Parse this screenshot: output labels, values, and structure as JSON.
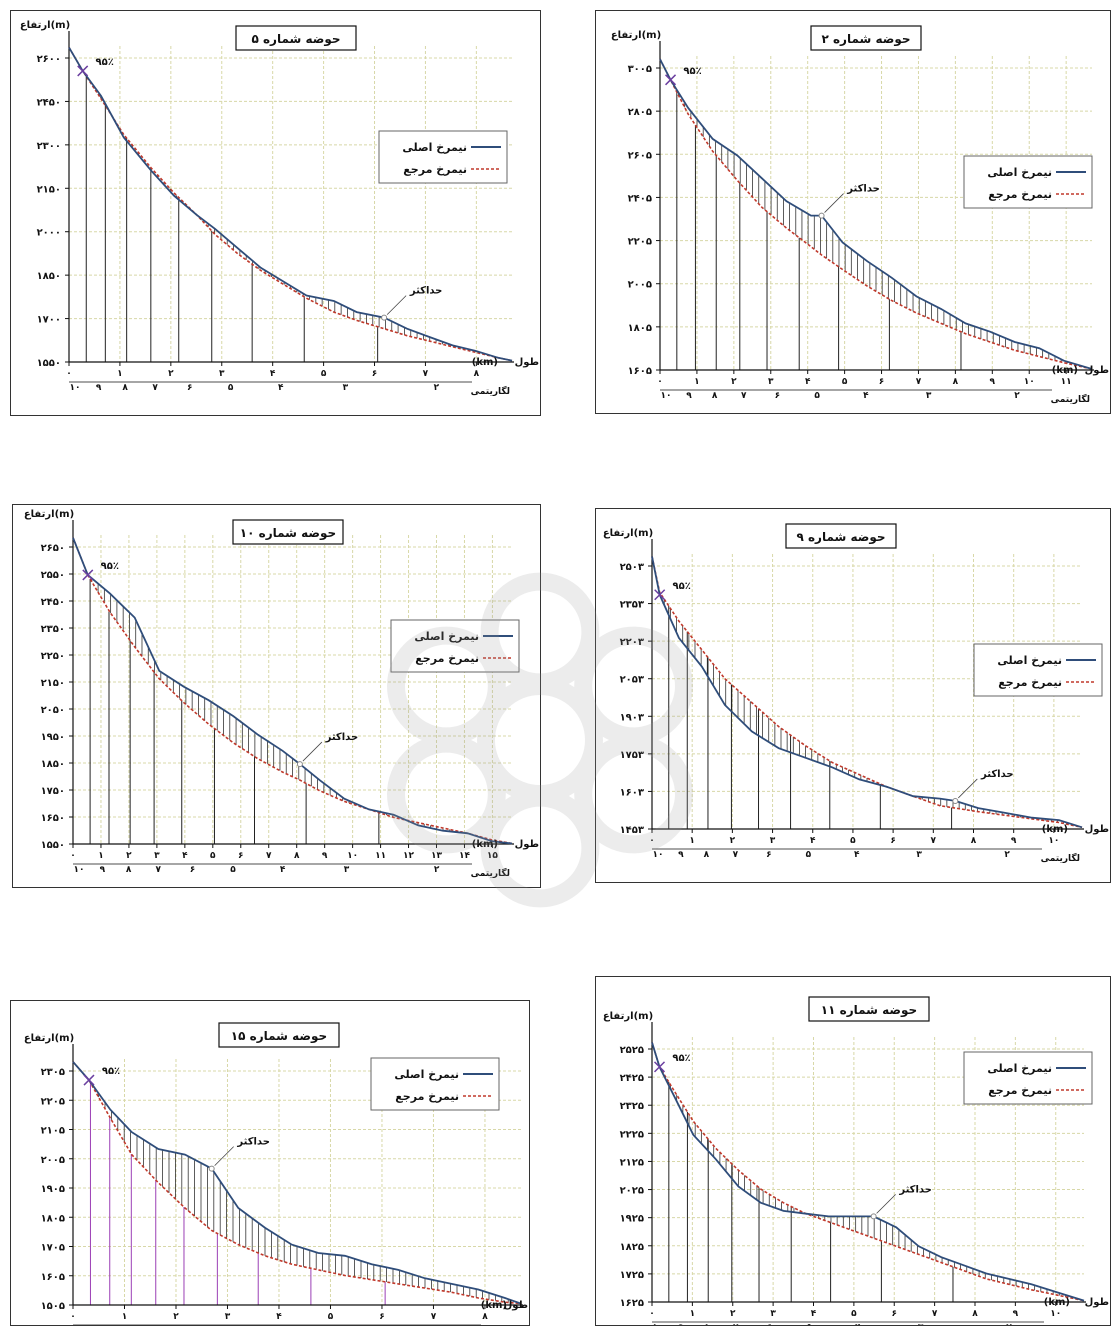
{
  "labels": {
    "y_axis": "ارتفاع(m)",
    "x_axis": "طول",
    "x_unit": "(km)",
    "log_label": "لگاریتمی",
    "legend_main": "نیمرخ اصلی",
    "legend_ref": "نیمرخ مرجع",
    "max_label": "حداکثر",
    "pct_label": "۹۵٪"
  },
  "colors": {
    "main": "#2f4d7a",
    "ref": "#c0392b",
    "grid": "#d8d8a8",
    "hatch": "#222222",
    "hatch_purple": "#9b3fb5"
  },
  "chart_data": [
    {
      "type": "line",
      "title": "حوضه شماره ۵",
      "yticks": [
        "۲۶۰۰",
        "۲۴۵۰",
        "۲۳۰۰",
        "۲۱۵۰",
        "۲۰۰۰",
        "۱۸۵۰",
        "۱۷۰۰",
        "۱۵۵۰"
      ],
      "ylim": [
        1550,
        2690
      ],
      "xlim": [
        0,
        9.7
      ],
      "xticks": [
        "۰",
        "۱",
        "۲",
        "۳",
        "۴",
        "۵",
        "۶",
        "۷",
        "۸"
      ],
      "logticks": [
        "۱۰",
        "۹",
        "۸",
        "۷",
        "۶",
        "۵",
        "۴",
        "۳",
        "۲"
      ],
      "max_x": 6.9,
      "series": [
        {
          "x": [
            0,
            0.3,
            0.7,
            1.2,
            1.8,
            2.3,
            2.8,
            3.2,
            3.7,
            4.2,
            4.7,
            5.2,
            5.8,
            6.3,
            6.9,
            7.4,
            7.9,
            8.4,
            8.9,
            9.4,
            9.7
          ],
          "y": [
            2685,
            2600,
            2510,
            2360,
            2240,
            2150,
            2080,
            2030,
            1960,
            1890,
            1840,
            1790,
            1770,
            1730,
            1710,
            1670,
            1640,
            1610,
            1590,
            1565,
            1555
          ]
        },
        {
          "x": [
            0,
            0.3,
            0.7,
            1.2,
            1.8,
            2.3,
            2.8,
            3.2,
            3.7,
            4.2,
            4.7,
            5.2,
            5.8,
            6.3,
            6.9,
            7.4,
            7.9,
            8.4,
            8.9,
            9.4,
            9.7
          ],
          "y": [
            2685,
            2600,
            2500,
            2370,
            2250,
            2160,
            2080,
            2010,
            1940,
            1880,
            1830,
            1780,
            1730,
            1700,
            1670,
            1645,
            1625,
            1605,
            1585,
            1565,
            1555
          ]
        }
      ],
      "legend": "top-right"
    },
    {
      "type": "line",
      "title": "حوضه شماره ۲",
      "yticks": [
        "۳۰۰۵",
        "۲۸۰۵",
        "۲۶۰۵",
        "۲۴۰۵",
        "۲۲۰۵",
        "۲۰۰۵",
        "۱۸۰۵",
        "۱۶۰۵"
      ],
      "ylim": [
        1605,
        3120
      ],
      "xlim": [
        0,
        12.3
      ],
      "xticks": [
        "۰",
        "۱",
        "۲",
        "۳",
        "۴",
        "۵",
        "۶",
        "۷",
        "۸",
        "۹",
        "۱۰",
        "۱۱"
      ],
      "logticks": [
        "۱۰",
        "۹",
        "۸",
        "۷",
        "۶",
        "۵",
        "۴",
        "۳",
        "۲"
      ],
      "max_x": 4.6,
      "series": [
        {
          "x": [
            0,
            0.3,
            0.8,
            1.5,
            2.2,
            2.9,
            3.6,
            4.3,
            4.6,
            5.2,
            5.9,
            6.6,
            7.3,
            8.0,
            8.7,
            9.4,
            10.1,
            10.8,
            11.5,
            12.3
          ],
          "y": [
            3105,
            3005,
            2870,
            2720,
            2640,
            2530,
            2420,
            2350,
            2350,
            2220,
            2130,
            2050,
            1960,
            1900,
            1830,
            1790,
            1740,
            1710,
            1650,
            1610
          ]
        },
        {
          "x": [
            0,
            0.3,
            0.8,
            1.5,
            2.2,
            2.9,
            3.6,
            4.3,
            4.6,
            5.2,
            5.9,
            6.6,
            7.3,
            8.0,
            8.7,
            9.4,
            10.1,
            10.8,
            11.5,
            12.3
          ],
          "y": [
            3105,
            3005,
            2840,
            2660,
            2520,
            2390,
            2290,
            2200,
            2160,
            2090,
            2010,
            1940,
            1880,
            1830,
            1780,
            1740,
            1700,
            1670,
            1640,
            1610
          ]
        }
      ],
      "legend": "middle-right"
    },
    {
      "type": "line",
      "title": "حوضه شماره ۱۰",
      "yticks": [
        "۲۶۵۰",
        "۲۵۵۰",
        "۲۴۵۰",
        "۲۳۵۰",
        "۲۲۵۰",
        "۲۱۵۰",
        "۲۰۵۰",
        "۱۹۵۰",
        "۱۸۵۰",
        "۱۷۵۰",
        "۱۶۵۰",
        "۱۵۵۰"
      ],
      "ylim": [
        1550,
        2710
      ],
      "xlim": [
        0,
        17.8
      ],
      "xticks": [
        "۰",
        "۱",
        "۲",
        "۳",
        "۴",
        "۵",
        "۶",
        "۷",
        "۸",
        "۹",
        "۱۰",
        "۱۱",
        "۱۲",
        "۱۳",
        "۱۴",
        "۱۵"
      ],
      "logticks": [
        "۱۰",
        "۹",
        "۸",
        "۷",
        "۶",
        "۵",
        "۴",
        "۳",
        "۲"
      ],
      "max_x": 9.2,
      "series": [
        {
          "x": [
            0,
            0.6,
            1.5,
            2.5,
            3.5,
            4.5,
            5.5,
            6.5,
            7.5,
            8.5,
            9.2,
            10.0,
            11.0,
            12.0,
            13.0,
            14.0,
            15.0,
            16.0,
            17.0,
            17.8
          ],
          "y": [
            2700,
            2560,
            2490,
            2400,
            2200,
            2140,
            2090,
            2030,
            1960,
            1900,
            1850,
            1790,
            1720,
            1680,
            1660,
            1620,
            1600,
            1590,
            1560,
            1552
          ]
        },
        {
          "x": [
            0,
            0.6,
            1.5,
            2.5,
            3.5,
            4.5,
            5.5,
            6.5,
            7.5,
            8.5,
            9.2,
            10.0,
            11.0,
            12.0,
            13.0,
            14.0,
            15.0,
            16.0,
            17.0,
            17.8
          ],
          "y": [
            2700,
            2560,
            2420,
            2290,
            2170,
            2080,
            2000,
            1930,
            1870,
            1820,
            1790,
            1750,
            1710,
            1680,
            1650,
            1630,
            1610,
            1590,
            1565,
            1552
          ]
        }
      ],
      "legend": "top-right"
    },
    {
      "type": "line",
      "title": "حوضه شماره ۹",
      "yticks": [
        "۲۵۰۳",
        "۲۳۵۳",
        "۲۲۰۳",
        "۲۰۵۳",
        "۱۹۰۳",
        "۱۷۵۳",
        "۱۶۰۳",
        "۱۴۵۳"
      ],
      "ylim": [
        1453,
        2600
      ],
      "xlim": [
        0,
        11.2
      ],
      "xticks": [
        "۰",
        "۱",
        "۲",
        "۳",
        "۴",
        "۵",
        "۶",
        "۷",
        "۸",
        "۹",
        "۱۰"
      ],
      "logticks": [
        "۱۰",
        "۹",
        "۸",
        "۷",
        "۶",
        "۵",
        "۴",
        "۳",
        "۲"
      ],
      "max_x": 7.9,
      "series": [
        {
          "x": [
            0,
            0.2,
            0.7,
            1.3,
            1.9,
            2.6,
            3.3,
            4.0,
            4.7,
            5.4,
            6.1,
            6.8,
            7.5,
            7.9,
            8.5,
            9.2,
            9.9,
            10.6,
            11.2
          ],
          "y": [
            2590,
            2430,
            2250,
            2130,
            1970,
            1860,
            1790,
            1750,
            1710,
            1660,
            1630,
            1590,
            1580,
            1570,
            1540,
            1520,
            1500,
            1490,
            1460
          ]
        },
        {
          "x": [
            0,
            0.2,
            0.7,
            1.3,
            1.9,
            2.6,
            3.3,
            4.0,
            4.7,
            5.4,
            6.1,
            6.8,
            7.5,
            7.9,
            8.5,
            9.2,
            9.9,
            10.6,
            11.2
          ],
          "y": [
            2590,
            2440,
            2320,
            2200,
            2080,
            1980,
            1880,
            1800,
            1730,
            1680,
            1630,
            1590,
            1550,
            1540,
            1525,
            1510,
            1495,
            1480,
            1460
          ]
        }
      ],
      "legend": "middle-right"
    },
    {
      "type": "line",
      "title": "حوضه شماره ۱۵",
      "yticks": [
        "۲۳۰۵",
        "۲۲۰۵",
        "۲۱۰۵",
        "۲۰۰۵",
        "۱۹۰۵",
        "۱۸۰۵",
        "۱۷۰۵",
        "۱۶۰۵",
        "۱۵۰۵"
      ],
      "ylim": [
        1505,
        2380
      ],
      "xlim": [
        0,
        8.4
      ],
      "xticks": [
        "۰",
        "۱",
        "۲",
        "۳",
        "۴",
        "۵",
        "۶",
        "۷",
        "۸"
      ],
      "logticks": [
        "۱۰",
        "۹",
        "۸",
        "۷",
        "۶",
        "۵",
        "۴",
        "۳",
        "۲"
      ],
      "max_x": 2.6,
      "series": [
        {
          "x": [
            0,
            0.3,
            0.7,
            1.1,
            1.6,
            2.1,
            2.6,
            3.1,
            3.6,
            4.1,
            4.6,
            5.1,
            5.6,
            6.1,
            6.6,
            7.1,
            7.6,
            8.1,
            8.4
          ],
          "y": [
            2370,
            2305,
            2200,
            2120,
            2060,
            2040,
            1990,
            1850,
            1780,
            1720,
            1690,
            1680,
            1650,
            1630,
            1600,
            1580,
            1560,
            1530,
            1510
          ]
        },
        {
          "x": [
            0,
            0.3,
            0.7,
            1.1,
            1.6,
            2.1,
            2.6,
            3.1,
            3.6,
            4.1,
            4.6,
            5.1,
            5.6,
            6.1,
            6.6,
            7.1,
            7.6,
            8.1,
            8.4
          ],
          "y": [
            2370,
            2305,
            2170,
            2040,
            1940,
            1850,
            1770,
            1720,
            1680,
            1650,
            1630,
            1610,
            1595,
            1580,
            1565,
            1550,
            1530,
            1515,
            1510
          ]
        }
      ],
      "legend": "top-right"
    },
    {
      "type": "line",
      "title": "حوضه شماره ۱۱",
      "yticks": [
        "۲۵۲۵",
        "۲۴۲۵",
        "۲۳۲۵",
        "۲۲۲۵",
        "۲۱۲۵",
        "۲۰۲۵",
        "۱۹۲۵",
        "۱۸۲۵",
        "۱۷۲۵",
        "۱۶۲۵"
      ],
      "ylim": [
        1625,
        2600
      ],
      "xlim": [
        0,
        11.5
      ],
      "xticks": [
        "۰",
        "۱",
        "۲",
        "۳",
        "۴",
        "۵",
        "۶",
        "۷",
        "۸",
        "۹",
        "۱۰"
      ],
      "logticks": [
        "۱۰",
        "۹",
        "۸",
        "۷",
        "۶",
        "۵",
        "۴",
        "۳",
        "۲"
      ],
      "max_x": 5.9,
      "series": [
        {
          "x": [
            0,
            0.2,
            0.6,
            1.1,
            1.7,
            2.3,
            2.9,
            3.5,
            4.1,
            4.7,
            5.3,
            5.9,
            6.5,
            7.1,
            7.7,
            8.3,
            8.9,
            9.5,
            10.1,
            10.8,
            11.5
          ],
          "y": [
            2580,
            2490,
            2380,
            2240,
            2150,
            2050,
            1990,
            1960,
            1950,
            1940,
            1940,
            1940,
            1900,
            1830,
            1790,
            1760,
            1730,
            1710,
            1690,
            1660,
            1630
          ]
        },
        {
          "x": [
            0,
            0.2,
            0.6,
            1.1,
            1.7,
            2.3,
            2.9,
            3.5,
            4.1,
            4.7,
            5.3,
            5.9,
            6.5,
            7.1,
            7.7,
            8.3,
            8.9,
            9.5,
            10.1,
            10.8,
            11.5
          ],
          "y": [
            2580,
            2490,
            2400,
            2290,
            2190,
            2110,
            2040,
            1990,
            1950,
            1920,
            1890,
            1860,
            1830,
            1800,
            1770,
            1740,
            1710,
            1690,
            1670,
            1650,
            1630
          ]
        }
      ],
      "legend": "middle-right"
    }
  ]
}
